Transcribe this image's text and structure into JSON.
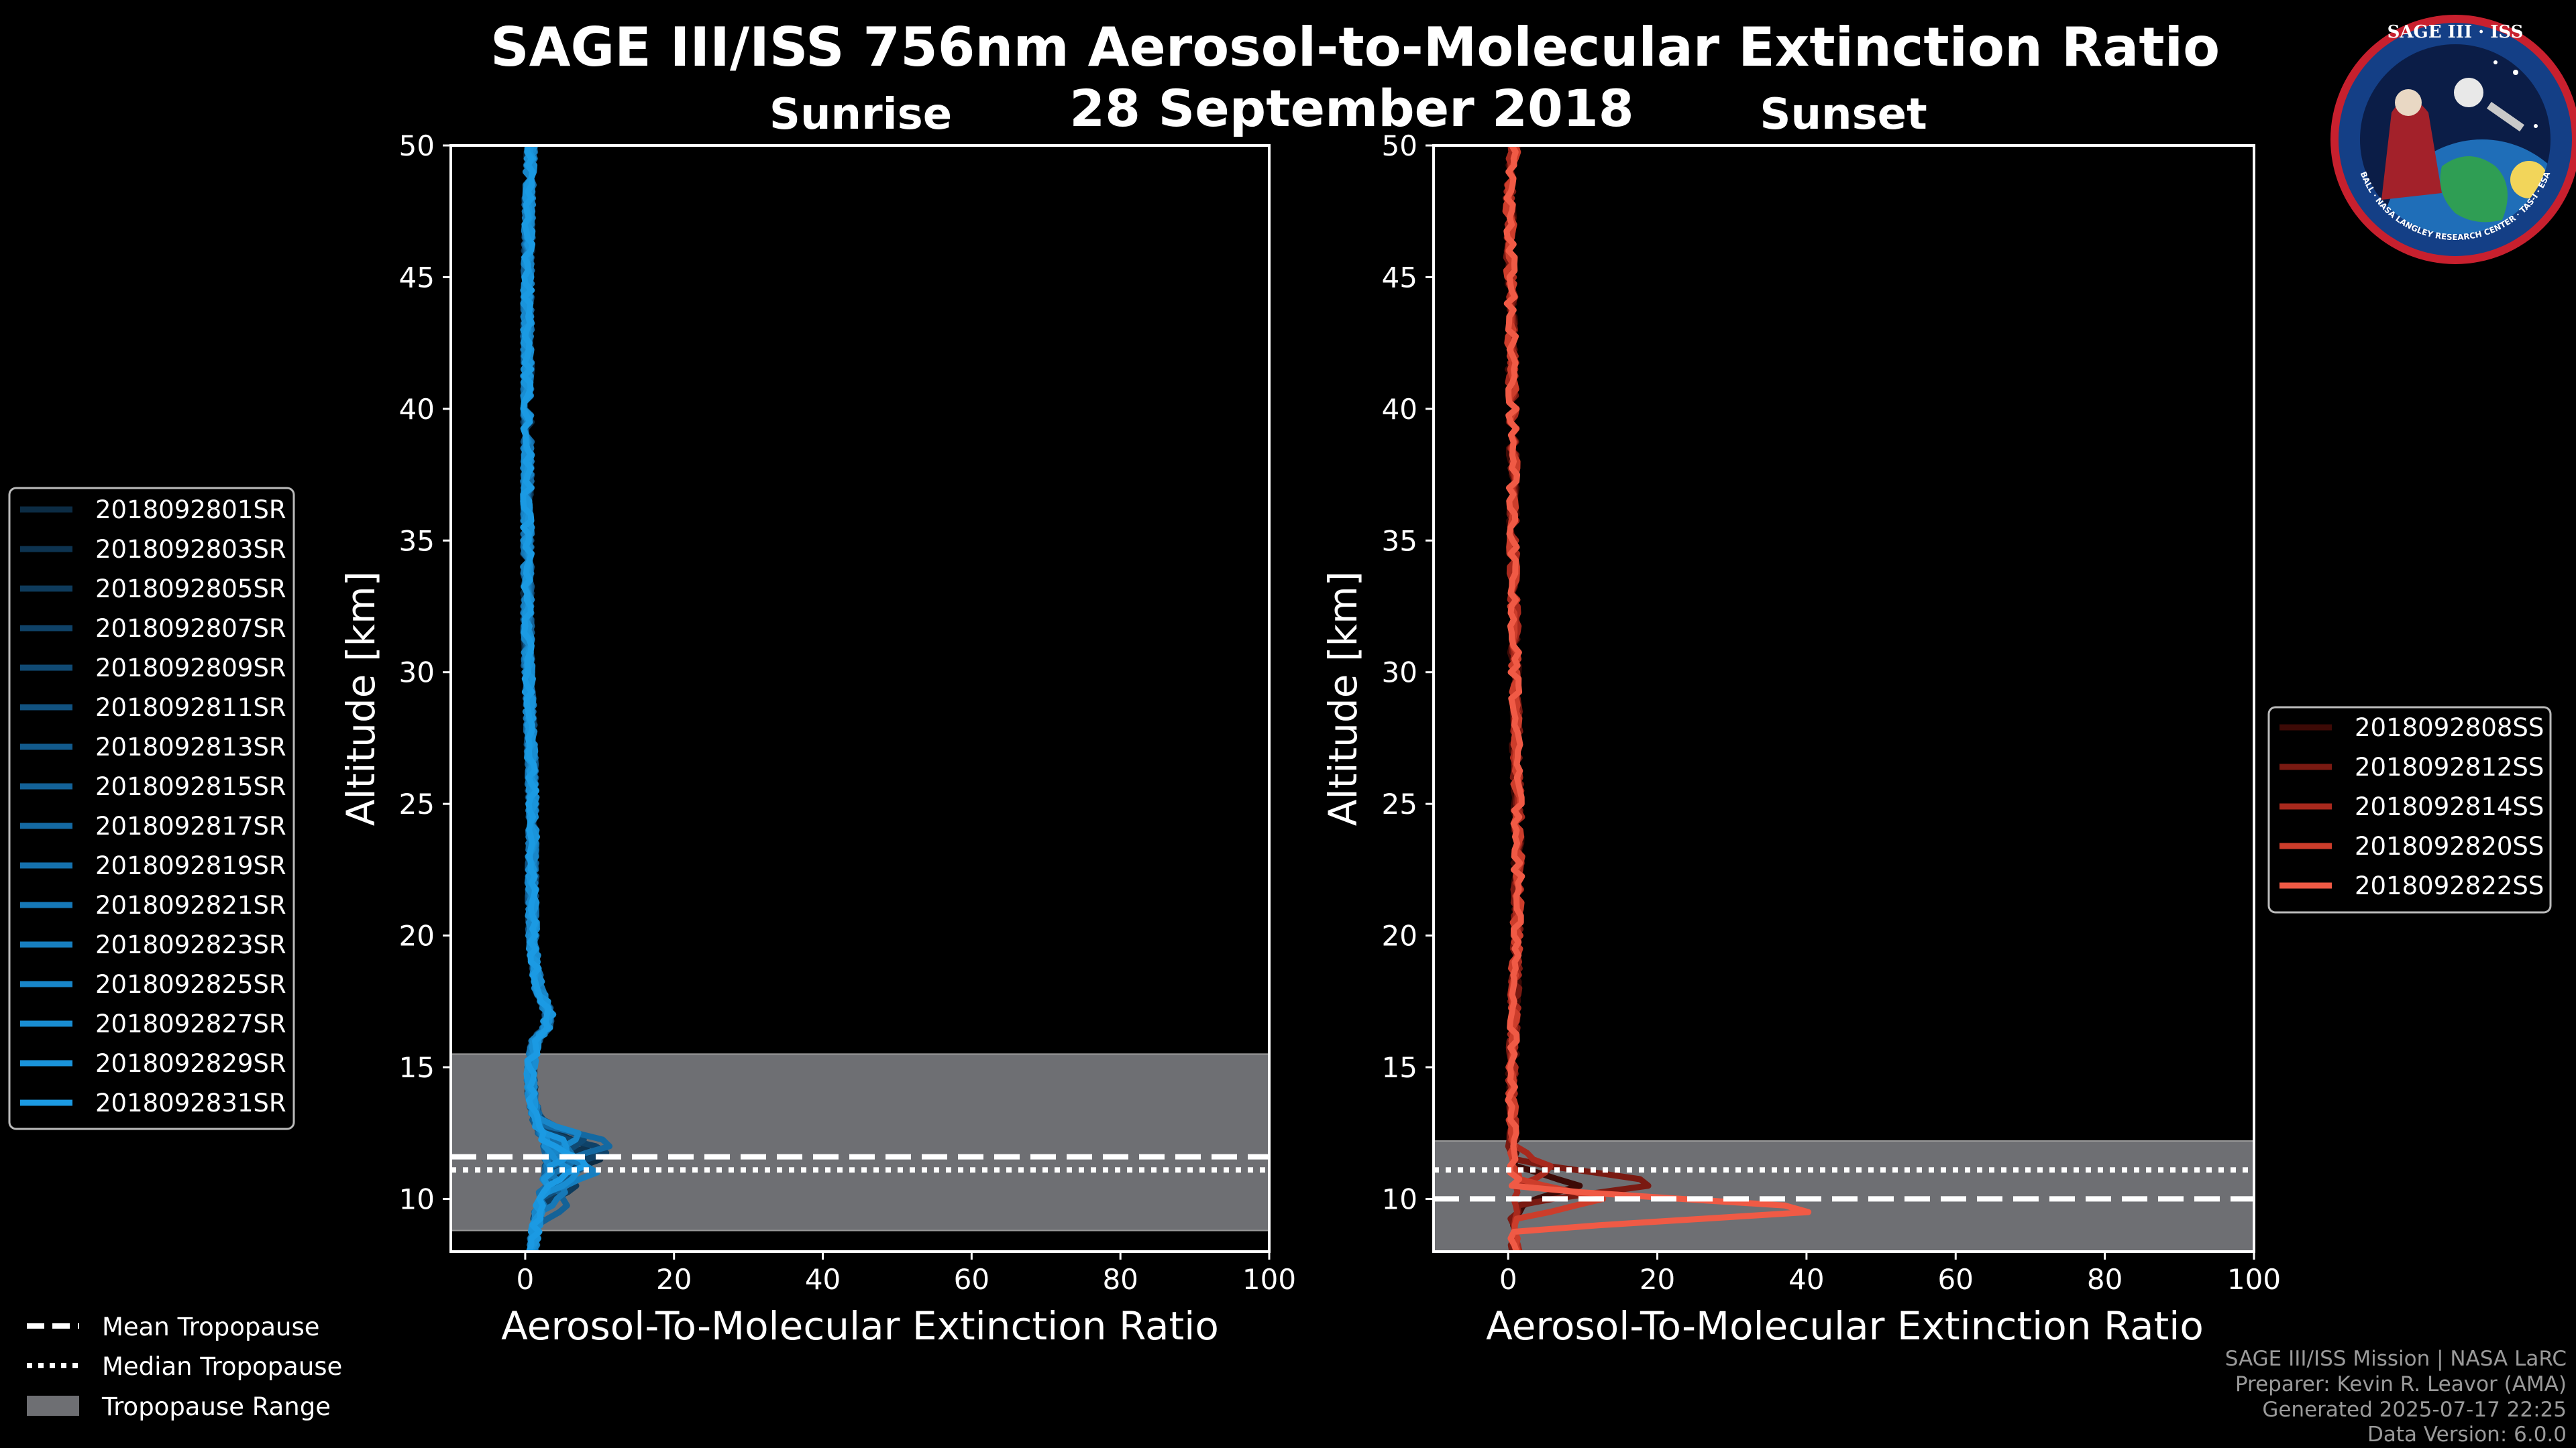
{
  "figure": {
    "title": "SAGE III/ISS 756nm Aerosol-to-Molecular Extinction Ratio",
    "date": "28 September 2018"
  },
  "logo": {
    "text": "SAGE III · ISS",
    "ring_text": "BALL · NASA LANGLEY RESEARCH CENTER · TAS-I · ESA"
  },
  "chart_data": [
    {
      "type": "line",
      "name": "sunrise",
      "title": "Sunrise",
      "xlabel": "Aerosol-To-Molecular Extinction Ratio",
      "ylabel": "Altitude [km]",
      "xlim": [
        -10,
        100
      ],
      "ylim": [
        8,
        50
      ],
      "xticks": [
        0,
        20,
        40,
        60,
        80,
        100
      ],
      "yticks": [
        10,
        15,
        20,
        25,
        30,
        35,
        40,
        45,
        50
      ],
      "grid": false,
      "legend_position": "outside-left",
      "tropopause": {
        "mean": 11.6,
        "median": 11.1,
        "range": [
          8.8,
          15.5
        ]
      },
      "profile": {
        "altitudes": [
          8,
          8.5,
          9,
          9.5,
          10,
          10.5,
          11,
          11.5,
          12,
          12.5,
          13,
          14,
          15,
          16,
          16.5,
          17,
          17.5,
          18,
          19,
          20,
          22,
          24,
          26,
          28,
          30,
          32,
          34,
          36,
          38,
          40,
          42,
          44,
          46,
          48,
          49,
          50
        ],
        "mean": [
          1.0,
          1.2,
          1.5,
          1.8,
          2.2,
          2.6,
          3.0,
          3.2,
          3.0,
          2.2,
          1.5,
          0.8,
          0.7,
          1.4,
          2.8,
          3.2,
          2.5,
          1.8,
          1.2,
          1.0,
          0.9,
          1.0,
          0.9,
          0.7,
          0.4,
          0.3,
          0.3,
          0.3,
          0.3,
          0.3,
          0.3,
          0.3,
          0.4,
          0.5,
          0.6,
          0.8
        ]
      },
      "series": [
        {
          "name": "2018092801SR",
          "color": "#0c2c44",
          "spike_alt": 11.5,
          "spike_val": 7.0,
          "seed": 1
        },
        {
          "name": "2018092803SR",
          "color": "#0d3350",
          "spike_alt": 12.0,
          "spike_val": 5.0,
          "seed": 2
        },
        {
          "name": "2018092805SR",
          "color": "#0e3b5c",
          "spike_alt": 10.5,
          "spike_val": 4.0,
          "seed": 3
        },
        {
          "name": "2018092807SR",
          "color": "#0f4268",
          "spike_alt": 11.8,
          "spike_val": 8.5,
          "seed": 4
        },
        {
          "name": "2018092809SR",
          "color": "#104a74",
          "spike_alt": 12.3,
          "spike_val": 6.0,
          "seed": 5
        },
        {
          "name": "2018092811SR",
          "color": "#115280",
          "spike_alt": 10.8,
          "spike_val": 3.5,
          "seed": 6
        },
        {
          "name": "2018092813SR",
          "color": "#125a8c",
          "spike_alt": 11.2,
          "spike_val": 5.5,
          "seed": 7
        },
        {
          "name": "2018092815SR",
          "color": "#136298",
          "spike_alt": 9.8,
          "spike_val": 4.0,
          "seed": 8
        },
        {
          "name": "2018092817SR",
          "color": "#1469a2",
          "spike_alt": 12.1,
          "spike_val": 9.0,
          "seed": 9
        },
        {
          "name": "2018092819SR",
          "color": "#1571ad",
          "spike_alt": 11.6,
          "spike_val": 4.5,
          "seed": 10
        },
        {
          "name": "2018092821SR",
          "color": "#1678b7",
          "spike_alt": 10.2,
          "spike_val": 3.0,
          "seed": 11
        },
        {
          "name": "2018092823SR",
          "color": "#177fc0",
          "spike_alt": 11.0,
          "spike_val": 6.5,
          "seed": 12
        },
        {
          "name": "2018092825SR",
          "color": "#1886c9",
          "spike_alt": 12.4,
          "spike_val": 5.0,
          "seed": 13
        },
        {
          "name": "2018092827SR",
          "color": "#198dd2",
          "spike_alt": 10.9,
          "spike_val": 4.0,
          "seed": 14
        },
        {
          "name": "2018092829SR",
          "color": "#1a94db",
          "spike_alt": 11.9,
          "spike_val": 3.5,
          "seed": 15
        },
        {
          "name": "2018092831SR",
          "color": "#1b9ae3",
          "spike_alt": 11.3,
          "spike_val": 5.0,
          "seed": 16
        }
      ]
    },
    {
      "type": "line",
      "name": "sunset",
      "title": "Sunset",
      "xlabel": "Aerosol-To-Molecular Extinction Ratio",
      "ylabel": "Altitude [km]",
      "xlim": [
        -10,
        100
      ],
      "ylim": [
        8,
        50
      ],
      "xticks": [
        0,
        20,
        40,
        60,
        80,
        100
      ],
      "yticks": [
        10,
        15,
        20,
        25,
        30,
        35,
        40,
        45,
        50
      ],
      "grid": false,
      "legend_position": "outside-right",
      "tropopause": {
        "mean": 10.0,
        "median": 11.1,
        "range": [
          8.0,
          12.2
        ]
      },
      "profile": {
        "altitudes": [
          8,
          8.5,
          9,
          9.5,
          10,
          10.5,
          11,
          11.5,
          12,
          13,
          14,
          15,
          16,
          18,
          20,
          22,
          24,
          26,
          28,
          30,
          32,
          34,
          36,
          38,
          40,
          42,
          44,
          46,
          48,
          49,
          50
        ],
        "mean": [
          1.0,
          0.8,
          0.8,
          1.0,
          1.2,
          1.0,
          0.8,
          0.7,
          0.6,
          0.5,
          0.5,
          0.6,
          0.7,
          0.9,
          1.1,
          1.3,
          1.3,
          1.2,
          1.0,
          0.9,
          0.8,
          0.7,
          0.7,
          0.7,
          0.6,
          0.5,
          0.4,
          0.3,
          0.2,
          0.5,
          0.8
        ]
      },
      "series": [
        {
          "name": "2018092808SS",
          "color": "#3d0a06",
          "spike_alt": 10.5,
          "spike_val": 8.0,
          "seed": 21
        },
        {
          "name": "2018092812SS",
          "color": "#7a1a12",
          "spike_alt": 10.6,
          "spike_val": 21.0,
          "seed": 22
        },
        {
          "name": "2018092814SS",
          "color": "#a8291d",
          "spike_alt": 11.2,
          "spike_val": 5.0,
          "seed": 23
        },
        {
          "name": "2018092820SS",
          "color": "#cc3d2b",
          "spike_alt": 10.0,
          "spike_val": 12.0,
          "seed": 24
        },
        {
          "name": "2018092822SS",
          "color": "#f05a45",
          "spike_alt": 9.6,
          "spike_val": 45.0,
          "seed": 25
        }
      ]
    }
  ],
  "tropopause_legend": {
    "mean_label": "Mean Tropopause",
    "median_label": "Median Tropopause",
    "range_label": "Tropopause Range",
    "range_color": "#6e6f73"
  },
  "credits": {
    "mission": "SAGE III/ISS Mission | NASA LaRC",
    "preparer": "Preparer: Kevin R. Leavor (AMA)",
    "generated": "Generated 2025-07-17 22:25",
    "version": "Data Version: 6.0.0"
  }
}
